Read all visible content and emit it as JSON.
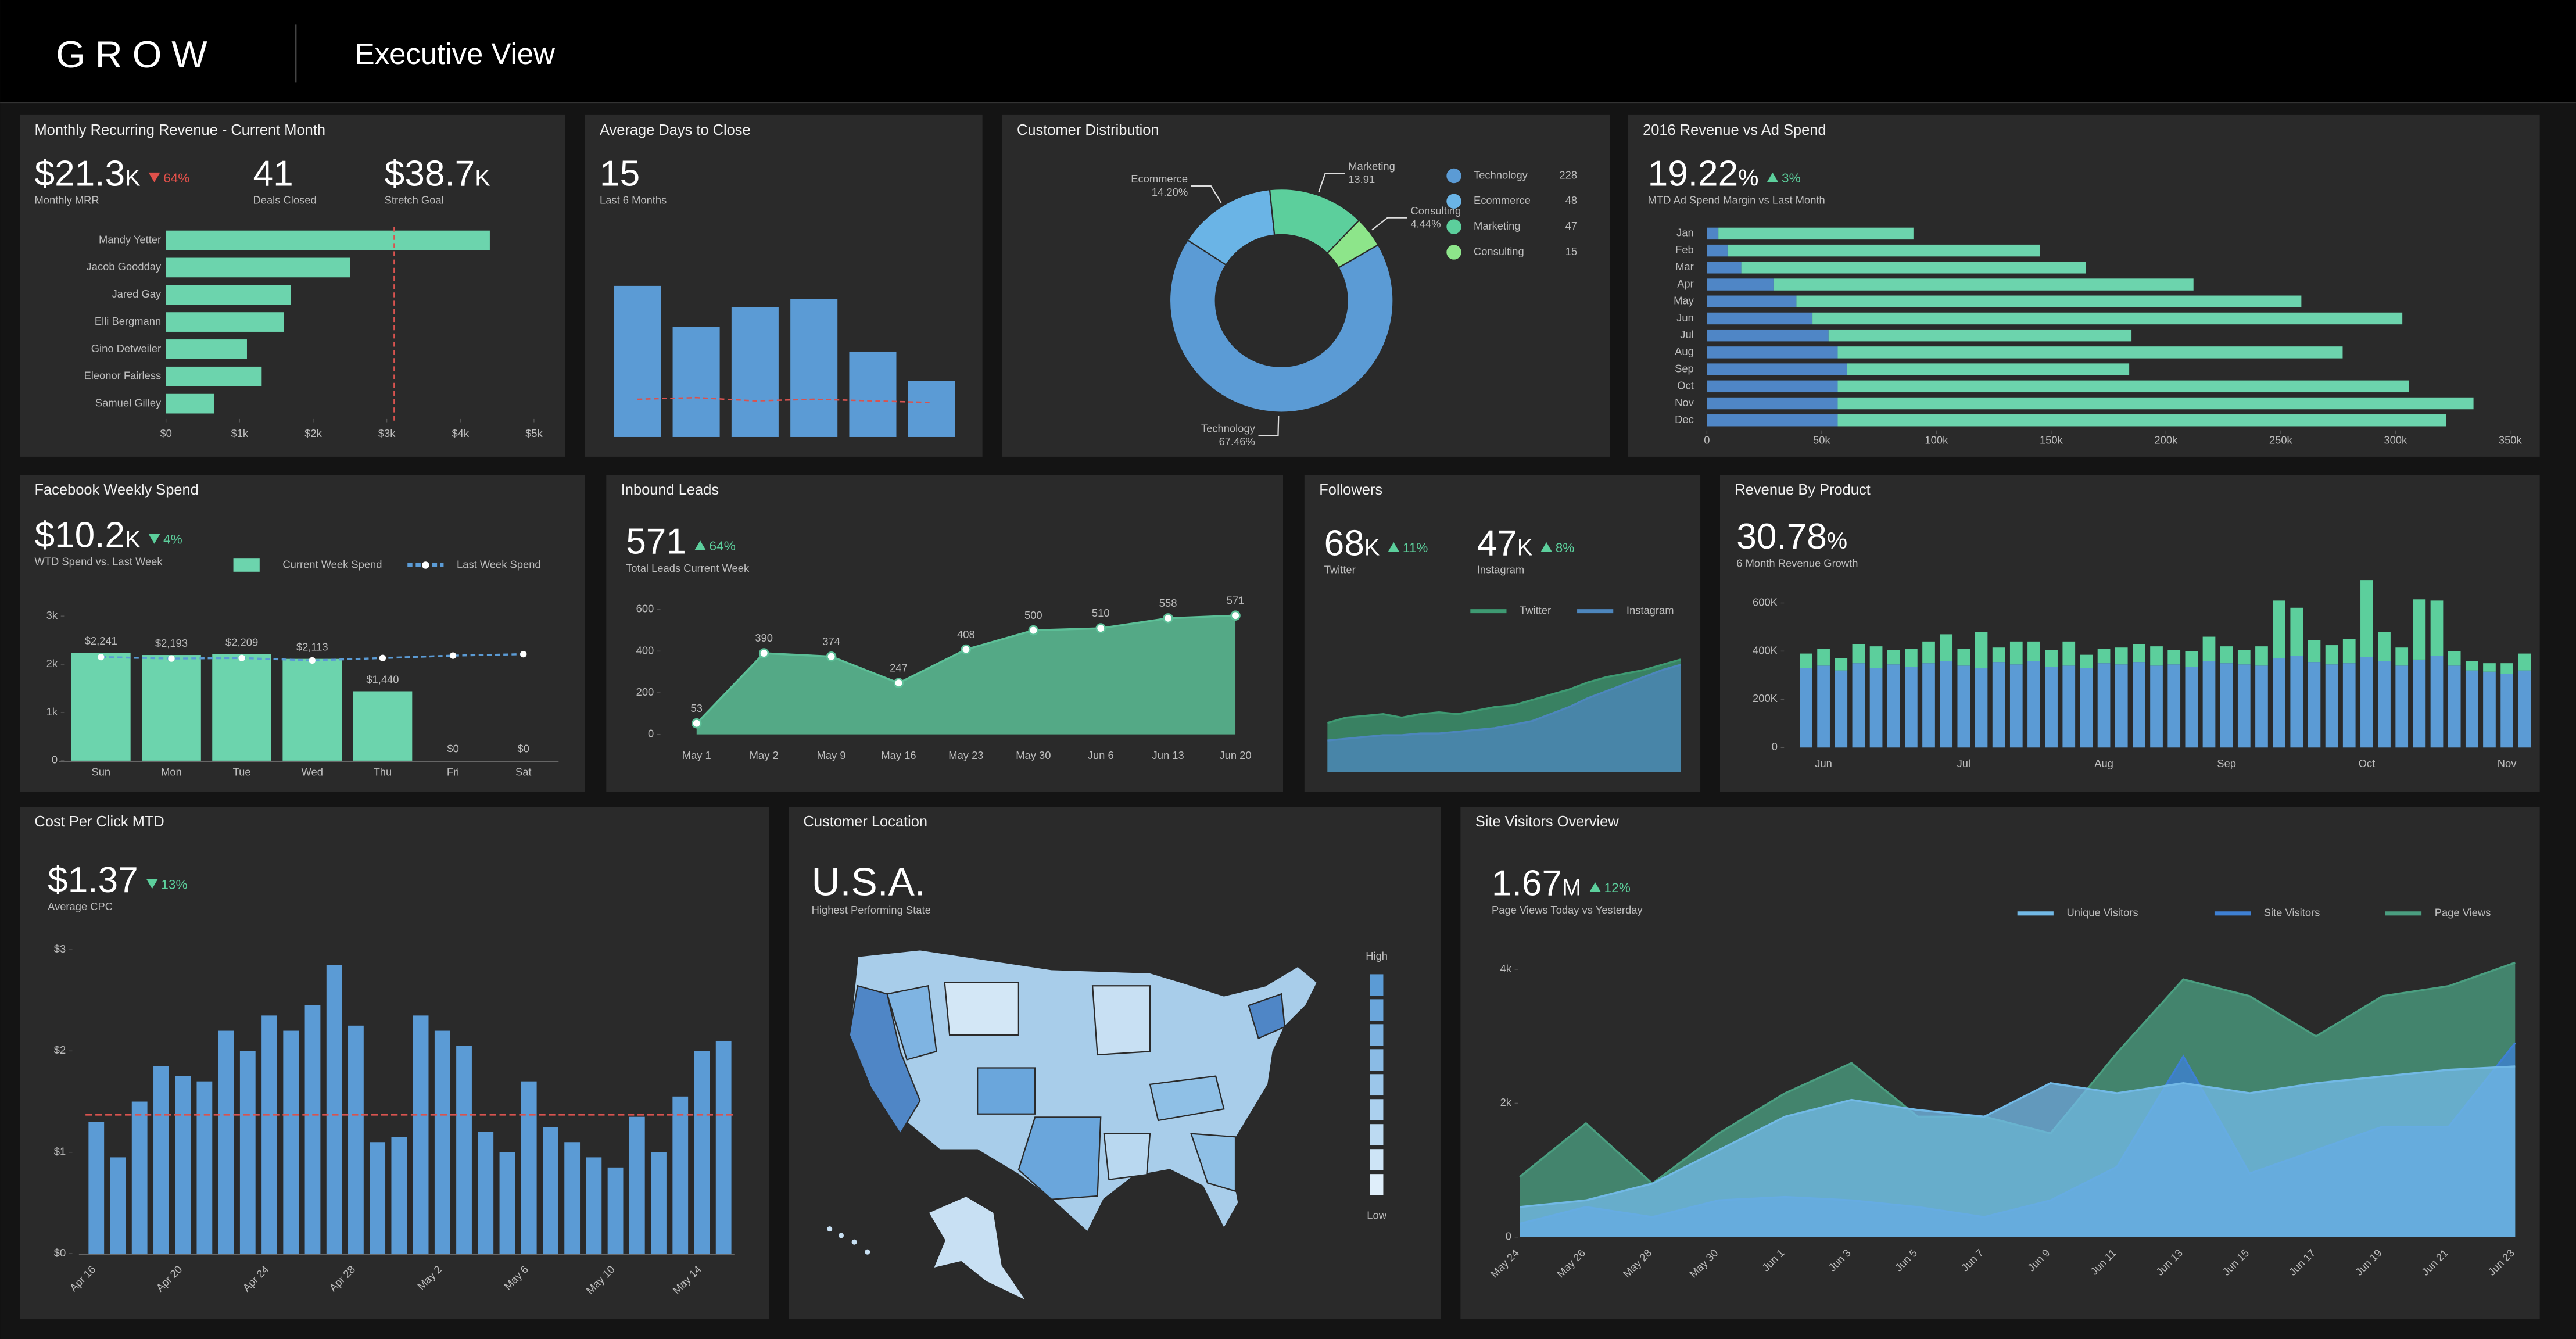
{
  "header": {
    "brand": "GROW",
    "title": "Executive View"
  },
  "chart_data": [
    {
      "type": "bar",
      "horizontal": true,
      "title": "Monthly Recurring Revenue - Current Month",
      "kpis": [
        {
          "value": "$21.3",
          "unit": "K",
          "change": "64%",
          "direction": "down",
          "change_color": "#e0504a",
          "label": "Monthly MRR"
        },
        {
          "value": "41",
          "label": "Deals Closed"
        },
        {
          "value": "$38.7",
          "unit": "K",
          "label": "Stretch Goal"
        }
      ],
      "categories": [
        "Mandy Yetter",
        "Jacob Goodday",
        "Jared Gay",
        "Elli Bergmann",
        "Gino Detweiler",
        "Eleonor Fairless",
        "Samuel Gilley"
      ],
      "values": [
        4400,
        2500,
        1700,
        1600,
        1100,
        1300,
        650
      ],
      "color": "#6cd4ad",
      "reference": 3100,
      "reference_color": "#d9534f",
      "xlim": [
        0,
        5000
      ],
      "xticks": [
        {
          "value": 0,
          "label": "$0"
        },
        {
          "value": 1000,
          "label": "$1k"
        },
        {
          "value": 2000,
          "label": "$2k"
        },
        {
          "value": 3000,
          "label": "$3k"
        },
        {
          "value": 4000,
          "label": "$4k"
        },
        {
          "value": 5000,
          "label": "$5k"
        }
      ]
    },
    {
      "type": "bar",
      "title": "Average Days to Close",
      "kpis": [
        {
          "value": "15",
          "label": "Last 6 Months"
        }
      ],
      "values": [
        92,
        67,
        79,
        84,
        52,
        34
      ],
      "color": "#5b9bd5",
      "line_values": [
        23,
        24,
        22,
        23,
        22,
        21
      ],
      "line_color": "#d9534f",
      "ylim": [
        0,
        100
      ]
    },
    {
      "type": "pie",
      "hole": 0.59,
      "title": "Customer Distribution",
      "categories": [
        "Technology",
        "Ecommerce",
        "Marketing",
        "Consulting"
      ],
      "values": [
        228,
        48,
        47,
        15
      ],
      "colors": [
        "#5b9bd5",
        "#6ab4e6",
        "#5ccf9c",
        "#8de58a"
      ],
      "share_labels": [
        "67.46%",
        "14.20%",
        "13.91",
        "4.44%"
      ]
    },
    {
      "type": "bar",
      "horizontal": true,
      "stacked": true,
      "title": "2016 Revenue vs Ad Spend",
      "kpis": [
        {
          "value": "19.22",
          "unit": "%",
          "change": "3%",
          "direction": "up",
          "change_color": "#5ccf9c",
          "label": "MTD Ad Spend Margin vs Last Month"
        }
      ],
      "categories": [
        "Jan",
        "Feb",
        "Mar",
        "Apr",
        "May",
        "Jun",
        "Jul",
        "Aug",
        "Sep",
        "Oct",
        "Nov",
        "Dec"
      ],
      "series": [
        {
          "color": "#4f86c6",
          "values": [
            5000,
            9000,
            15000,
            29000,
            39000,
            46000,
            53000,
            57000,
            61000,
            57000,
            57000,
            57000
          ]
        },
        {
          "color": "#6cd4ad",
          "values": [
            85000,
            136000,
            150000,
            183000,
            220000,
            257000,
            132000,
            220000,
            123000,
            249000,
            277000,
            265000
          ]
        }
      ],
      "xlim": [
        0,
        350000
      ],
      "xticks": [
        0,
        {
          "value": 50000,
          "label": "50k"
        },
        {
          "value": 100000,
          "label": "100k"
        },
        {
          "value": 150000,
          "label": "150k"
        },
        {
          "value": 200000,
          "label": "200k"
        },
        {
          "value": 250000,
          "label": "250k"
        },
        {
          "value": 300000,
          "label": "300k"
        },
        {
          "value": 350000,
          "label": "350k"
        }
      ]
    },
    {
      "type": "bar",
      "title": "Facebook Weekly Spend",
      "kpis": [
        {
          "value": "$10.2",
          "unit": "K",
          "change": "4%",
          "direction": "down",
          "change_color": "#5ccf9c",
          "label": "WTD Spend vs. Last Week"
        }
      ],
      "categories": [
        "Sun",
        "Mon",
        "Tue",
        "Wed",
        "Thu",
        "Fri",
        "Sat"
      ],
      "series": [
        {
          "name": "Current Week Spend",
          "color": "#6cd4ad",
          "values": [
            2241,
            2193,
            2209,
            2113,
            1440,
            0,
            0
          ],
          "value_labels": [
            "$2,241",
            "$2,193",
            "$2,209",
            "$2,113",
            "$1,440",
            "$0",
            "$0"
          ]
        },
        {
          "name": "Last Week Spend",
          "type": "line",
          "color": "#5b9bd5",
          "values": [
            2150,
            2120,
            2130,
            2080,
            2130,
            2180,
            2210
          ]
        }
      ],
      "ylim": [
        0,
        3000
      ],
      "yticks": [
        0,
        {
          "value": 1000,
          "label": "1k"
        },
        {
          "value": 2000,
          "label": "2k"
        },
        {
          "value": 3000,
          "label": "3k"
        }
      ]
    },
    {
      "type": "area",
      "title": "Inbound Leads",
      "kpis": [
        {
          "value": "571",
          "change": "64%",
          "direction": "up",
          "change_color": "#5ccf9c",
          "label": "Total Leads Current Week"
        }
      ],
      "categories": [
        "May 1",
        "May 2",
        "May 9",
        "May 16",
        "May 23",
        "May 30",
        "Jun 6",
        "Jun 13",
        "Jun 20"
      ],
      "values": [
        53,
        390,
        374,
        247,
        408,
        500,
        510,
        558,
        571
      ],
      "color": "#5cbf97",
      "ylim": [
        0,
        600
      ],
      "yticks": [
        0,
        200,
        400,
        600
      ]
    },
    {
      "type": "area",
      "title": "Followers",
      "kpis": [
        {
          "value": "68",
          "unit": "K",
          "change": "11%",
          "direction": "up",
          "change_color": "#5ccf9c",
          "label": "Twitter"
        },
        {
          "value": "47",
          "unit": "K",
          "change": "8%",
          "direction": "up",
          "change_color": "#5ccf9c",
          "label": "Instagram"
        }
      ],
      "series": [
        {
          "name": "Twitter",
          "color": "#3e9a72",
          "values": [
            28,
            31,
            32,
            33,
            31,
            33,
            34,
            33,
            35,
            37,
            38,
            41,
            44,
            47,
            51,
            54,
            56,
            58,
            61,
            64
          ]
        },
        {
          "name": "Instagram",
          "color": "#4d86bd",
          "values": [
            18,
            19,
            20,
            21,
            21,
            22,
            22,
            23,
            24,
            25,
            27,
            29,
            33,
            37,
            42,
            46,
            50,
            54,
            58,
            61
          ]
        }
      ],
      "ylim": [
        0,
        70
      ]
    },
    {
      "type": "bar",
      "stacked": true,
      "title": "Revenue By Product",
      "kpis": [
        {
          "value": "30.78",
          "unit": "%",
          "label": "6 Month Revenue Growth"
        }
      ],
      "categories": [
        null,
        "Jun",
        null,
        null,
        null,
        null,
        null,
        null,
        null,
        "Jul",
        null,
        null,
        null,
        null,
        null,
        null,
        null,
        "Aug",
        null,
        null,
        null,
        null,
        null,
        null,
        "Sep",
        null,
        null,
        null,
        null,
        null,
        null,
        null,
        "Oct",
        null,
        null,
        null,
        null,
        null,
        null,
        null,
        "Nov",
        null
      ],
      "series": [
        {
          "color": "#5b9bd5",
          "values": [
            330000,
            340000,
            320000,
            350000,
            330000,
            345000,
            335000,
            350000,
            360000,
            340000,
            330000,
            355000,
            345000,
            360000,
            335000,
            340000,
            330000,
            350000,
            345000,
            355000,
            340000,
            345000,
            335000,
            360000,
            350000,
            345000,
            340000,
            370000,
            380000,
            355000,
            345000,
            350000,
            375000,
            360000,
            340000,
            365000,
            380000,
            340000,
            320000,
            315000,
            305000,
            320000
          ]
        },
        {
          "color": "#5ccf9c",
          "values": [
            60000,
            70000,
            50000,
            80000,
            90000,
            60000,
            75000,
            90000,
            110000,
            70000,
            150000,
            60000,
            95000,
            80000,
            70000,
            100000,
            55000,
            60000,
            70000,
            75000,
            80000,
            60000,
            65000,
            100000,
            70000,
            60000,
            80000,
            240000,
            200000,
            90000,
            80000,
            100000,
            320000,
            120000,
            75000,
            250000,
            230000,
            60000,
            40000,
            35000,
            45000,
            70000
          ]
        }
      ],
      "ylim": [
        0,
        720000
      ],
      "yticks": [
        0,
        {
          "value": 200000,
          "label": "200K"
        },
        {
          "value": 400000,
          "label": "400K"
        },
        {
          "value": 600000,
          "label": "600K"
        }
      ]
    },
    {
      "type": "bar",
      "title": "Cost Per Click MTD",
      "kpis": [
        {
          "value": "$1.37",
          "change": "13%",
          "direction": "down",
          "change_color": "#5ccf9c",
          "label": "Average CPC"
        }
      ],
      "categories": [
        "Apr 16",
        null,
        null,
        null,
        "Apr 20",
        null,
        null,
        null,
        "Apr 24",
        null,
        null,
        null,
        "Apr 28",
        null,
        null,
        null,
        "May 2",
        null,
        null,
        null,
        "May 6",
        null,
        null,
        null,
        "May 10",
        null,
        null,
        null,
        "May 14",
        null
      ],
      "values": [
        1.3,
        0.95,
        1.5,
        1.85,
        1.75,
        1.7,
        2.2,
        2.0,
        2.35,
        2.2,
        2.45,
        2.85,
        2.25,
        1.1,
        1.15,
        2.35,
        2.2,
        2.05,
        1.2,
        1.0,
        1.7,
        1.25,
        1.1,
        0.95,
        0.85,
        1.35,
        1.0,
        1.55,
        2.0,
        2.1
      ],
      "color": "#5b9bd5",
      "reference": 1.37,
      "reference_color": "#d9534f",
      "ylim": [
        0,
        3.2
      ],
      "yticks": [
        {
          "value": 0,
          "label": "$0"
        },
        {
          "value": 1,
          "label": "$1"
        },
        {
          "value": 2,
          "label": "$2"
        },
        {
          "value": 3,
          "label": "$3"
        }
      ]
    },
    {
      "type": "map",
      "title": "Customer Location",
      "kpis": [
        {
          "value": "U.S.A.",
          "label": "Highest Performing State"
        }
      ],
      "legend": [
        "High",
        "Low"
      ]
    },
    {
      "type": "area",
      "title": "Site Visitors Overview",
      "kpis": [
        {
          "value": "1.67",
          "unit": "M",
          "change": "12%",
          "direction": "up",
          "change_color": "#5ccf9c",
          "label": "Page Views Today vs Yesterday"
        }
      ],
      "categories": [
        "May 24",
        "May 26",
        "May 28",
        "May 30",
        "Jun 1",
        "Jun 3",
        "Jun 5",
        "Jun 7",
        "Jun 9",
        "Jun 11",
        "Jun 13",
        "Jun 15",
        "Jun 17",
        "Jun 19",
        "Jun 21",
        "Jun 23"
      ],
      "series": [
        {
          "name": "Unique Visitors",
          "color": "#72b9e6",
          "values": [
            450,
            550,
            800,
            1300,
            1800,
            2050,
            1900,
            1800,
            2300,
            2150,
            2300,
            2150,
            2300,
            2400,
            2500,
            2550
          ]
        },
        {
          "name": "Site Visitors",
          "color": "#3e80d4",
          "values": [
            200,
            450,
            300,
            550,
            600,
            550,
            450,
            300,
            550,
            1050,
            2700,
            950,
            1300,
            1650,
            1650,
            2900
          ]
        },
        {
          "name": "Page Views",
          "color": "#4a9e80",
          "values": [
            900,
            1700,
            800,
            1550,
            2150,
            2600,
            1800,
            1800,
            1550,
            2750,
            3850,
            3600,
            3000,
            3600,
            3750,
            4100
          ]
        }
      ],
      "ylim": [
        0,
        4400
      ],
      "yticks": [
        0,
        {
          "value": 2000,
          "label": "2k"
        },
        {
          "value": 4000,
          "label": "4k"
        }
      ]
    }
  ]
}
